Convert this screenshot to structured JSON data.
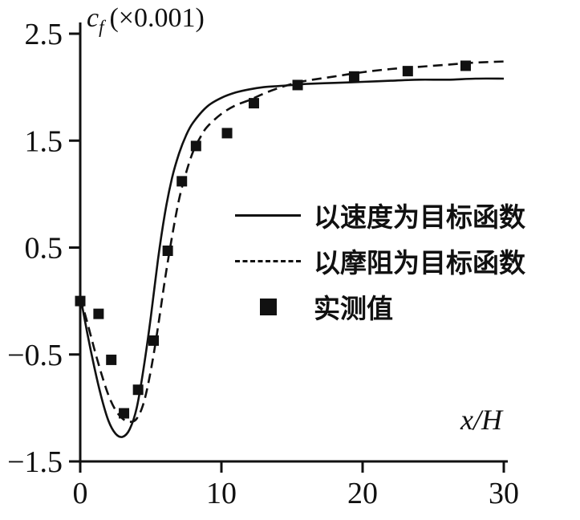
{
  "figure": {
    "title": {
      "symbol": "c",
      "subscript": "f",
      "suffix": "(×0.001)"
    },
    "x_axis_label": "x/H"
  },
  "legend": {
    "entries": [
      {
        "label": "以速度为目标函数",
        "sample": "solid-line"
      },
      {
        "label": "以摩阻为目标函数",
        "sample": "dashed-line"
      },
      {
        "label": "实测值",
        "sample": "filled-square"
      }
    ]
  },
  "chart_data": {
    "type": "line",
    "title": "c_f (×0.001)",
    "xlabel": "x/H",
    "ylabel": "c_f (×0.001)",
    "xlim": [
      0,
      30
    ],
    "ylim": [
      -1.5,
      2.5
    ],
    "grid": false,
    "legend_position": "inside-center-right",
    "x_ticks": [
      {
        "value": 0,
        "label": "0"
      },
      {
        "value": 10,
        "label": "10"
      },
      {
        "value": 20,
        "label": "20"
      },
      {
        "value": 30,
        "label": "30"
      }
    ],
    "y_ticks": [
      {
        "value": 2.5,
        "label": "2.5"
      },
      {
        "value": 1.5,
        "label": "1.5"
      },
      {
        "value": 0.5,
        "label": "0.5"
      },
      {
        "value": -0.5,
        "label": "−0.5"
      },
      {
        "value": -1.5,
        "label": "−1.5"
      }
    ],
    "series": [
      {
        "name": "以速度为目标函数",
        "style": "solid",
        "x": [
          0,
          0.5,
          1,
          1.5,
          2,
          2.5,
          3,
          3.5,
          4,
          4.5,
          5,
          5.5,
          6,
          6.5,
          7,
          7.5,
          8,
          9,
          10,
          11,
          12,
          13,
          14,
          15,
          16,
          18,
          20,
          22,
          24,
          26,
          28,
          30
        ],
        "y": [
          0.05,
          -0.3,
          -0.62,
          -0.9,
          -1.12,
          -1.24,
          -1.27,
          -1.2,
          -1.0,
          -0.62,
          -0.15,
          0.38,
          0.82,
          1.15,
          1.38,
          1.55,
          1.67,
          1.82,
          1.9,
          1.95,
          1.98,
          2.0,
          2.01,
          2.02,
          2.03,
          2.04,
          2.05,
          2.06,
          2.07,
          2.07,
          2.08,
          2.08
        ]
      },
      {
        "name": "以摩阻为目标函数",
        "style": "dashed",
        "x": [
          0,
          0.5,
          1,
          1.5,
          2,
          2.5,
          3,
          3.5,
          4,
          4.5,
          5,
          5.5,
          6,
          6.5,
          7,
          7.5,
          8,
          8.5,
          9,
          10,
          11,
          12,
          13,
          14,
          15,
          16,
          18,
          20,
          22,
          24,
          26,
          28,
          30
        ],
        "y": [
          0.03,
          -0.2,
          -0.45,
          -0.68,
          -0.88,
          -1.02,
          -1.1,
          -1.13,
          -1.1,
          -0.95,
          -0.65,
          -0.25,
          0.2,
          0.6,
          0.95,
          1.2,
          1.4,
          1.53,
          1.63,
          1.75,
          1.83,
          1.88,
          1.94,
          1.99,
          2.03,
          2.06,
          2.1,
          2.14,
          2.17,
          2.19,
          2.21,
          2.23,
          2.24
        ]
      },
      {
        "name": "实测值",
        "style": "scatter-square",
        "x": [
          0,
          1.3,
          2.2,
          3.1,
          4.1,
          5.2,
          6.2,
          7.2,
          8.2,
          10.4,
          12.3,
          15.4,
          19.4,
          23.2,
          27.3
        ],
        "y": [
          0.0,
          -0.12,
          -0.55,
          -1.05,
          -0.83,
          -0.37,
          0.47,
          1.12,
          1.45,
          1.57,
          1.85,
          2.02,
          2.1,
          2.15,
          2.2
        ]
      }
    ]
  }
}
